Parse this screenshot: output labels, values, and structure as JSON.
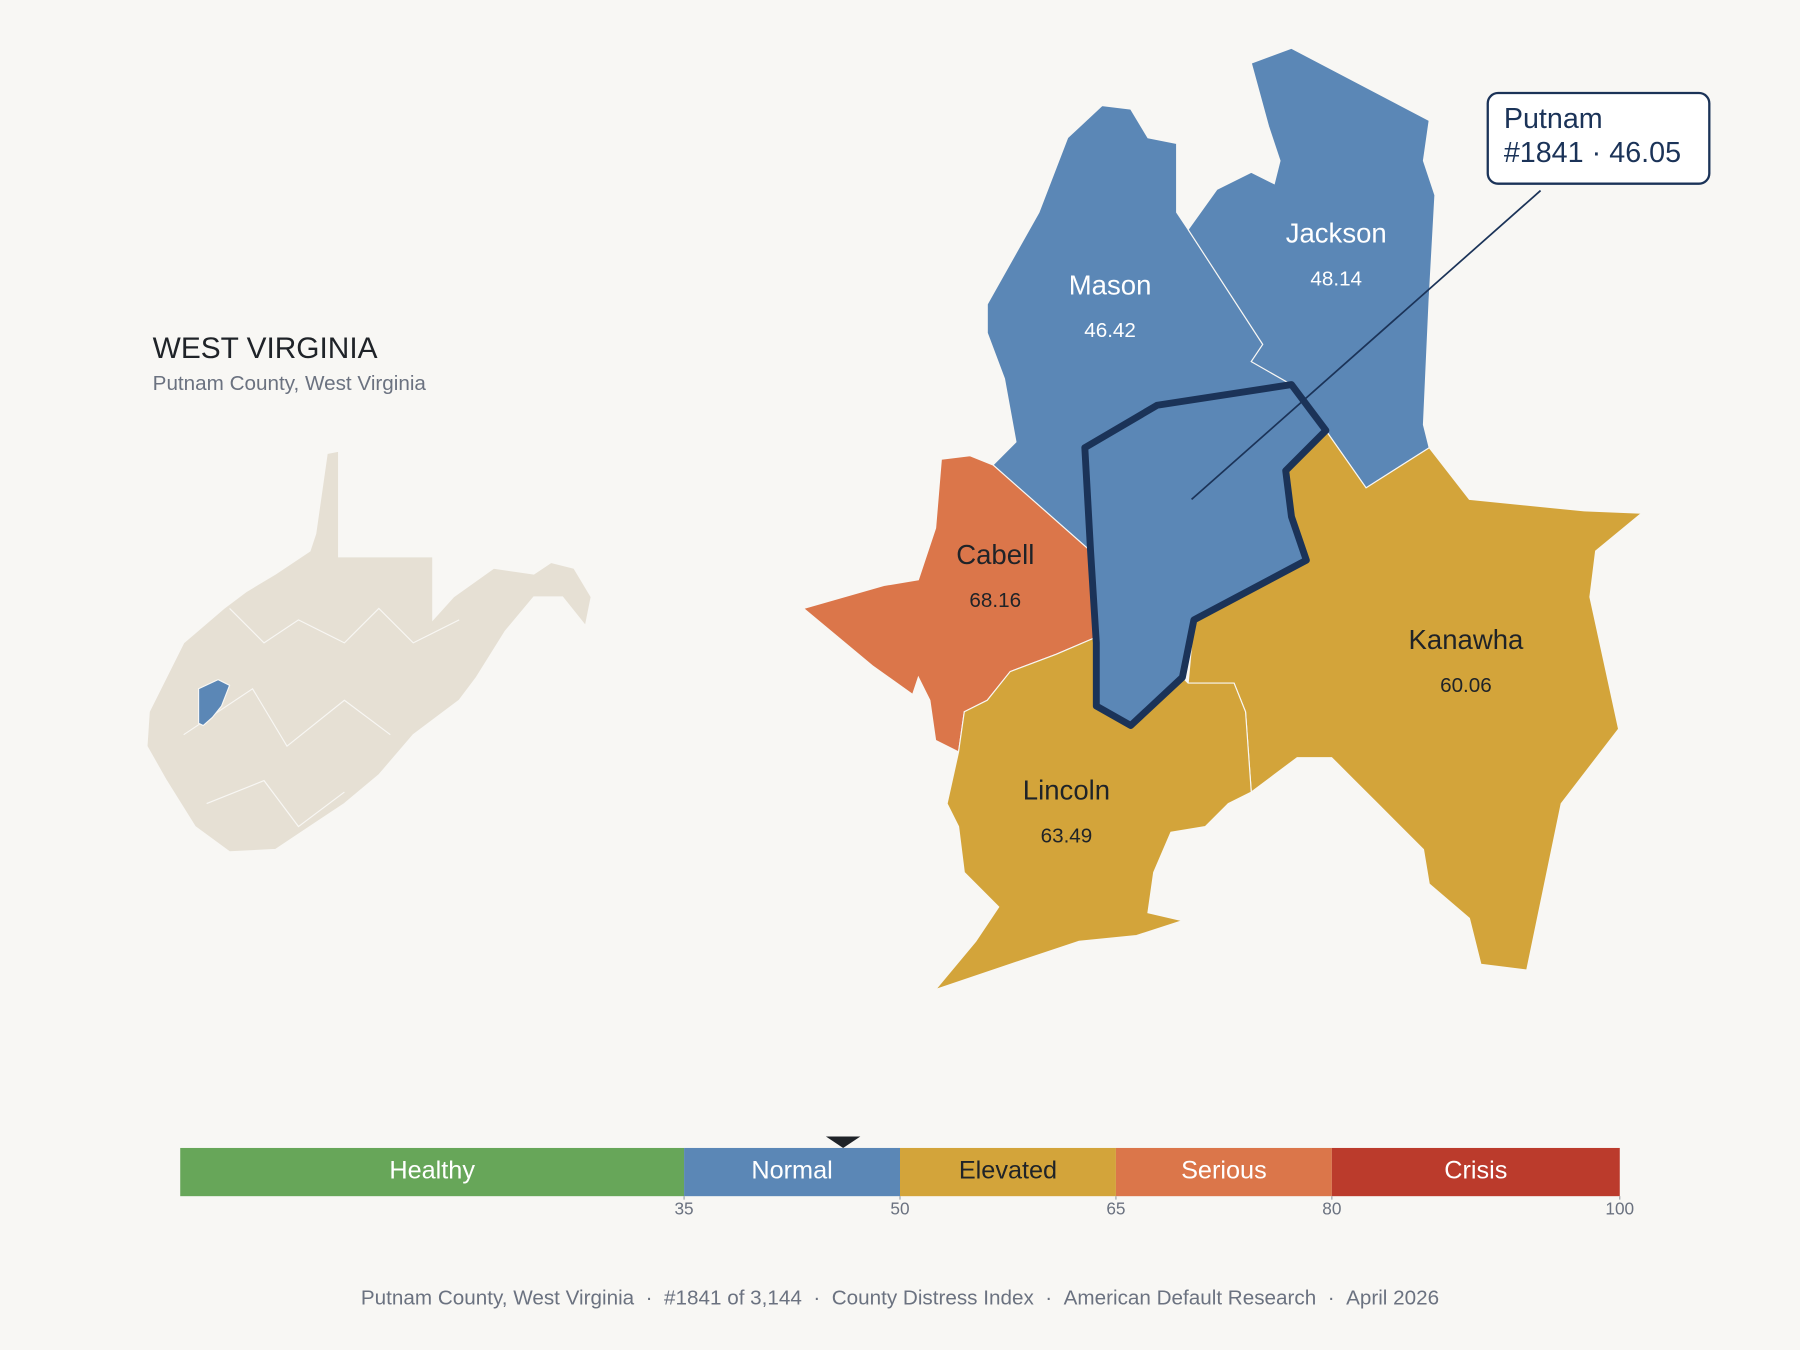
{
  "header": {
    "title": "WEST VIRGINIA",
    "subtitle": "Putnam County, West Virginia"
  },
  "counties": [
    {
      "name": "Mason",
      "value": 46.42
    },
    {
      "name": "Jackson",
      "value": 48.14
    },
    {
      "name": "Cabell",
      "value": 68.16
    },
    {
      "name": "Kanawha",
      "value": 60.06
    },
    {
      "name": "Lincoln",
      "value": 63.49
    }
  ],
  "callout": {
    "name": "Putnam",
    "rank": "#1841",
    "separator": "·",
    "score": 46.05
  },
  "scale": {
    "xlim": [
      0,
      100
    ],
    "ticks": [
      35,
      50,
      65,
      80,
      100
    ],
    "bands": [
      {
        "name": "Healthy",
        "color": "#67a659"
      },
      {
        "name": "Normal",
        "color": "#5b87b6"
      },
      {
        "name": "Elevated",
        "color": "#d3a43a"
      },
      {
        "name": "Serious",
        "color": "#db764a"
      },
      {
        "name": "Crisis",
        "color": "#bb3b2c"
      }
    ]
  },
  "footer": {
    "separator": "·",
    "parts": [
      "Putnam County, West Virginia",
      "#1841 of 3,144",
      "County Distress Index",
      "American Default Research",
      "April 2026"
    ]
  }
}
